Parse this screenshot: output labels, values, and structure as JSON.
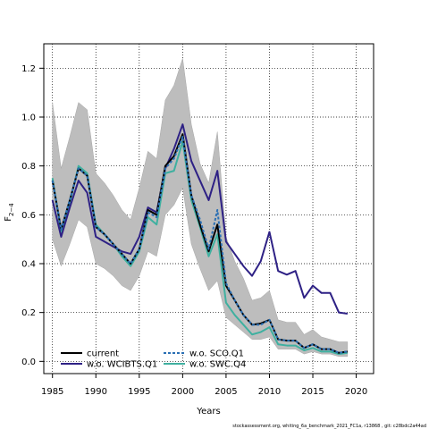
{
  "chart_data": {
    "type": "line",
    "xlabel": "Years",
    "ylabel_main": "F",
    "ylabel_sub": "2−4",
    "xlim": [
      1984,
      2022
    ],
    "ylim": [
      -0.05,
      1.3
    ],
    "xticks": [
      1985,
      1990,
      1995,
      2000,
      2005,
      2010,
      2015,
      2020
    ],
    "yticks": [
      0.0,
      0.2,
      0.4,
      0.6,
      0.8,
      1.0,
      1.2
    ],
    "grid": true,
    "legend_position": "bottom-left",
    "footnote": "stockassessment.org, whiting_6a_benchmark_2021_FC1a, r13868 , git: c28bdc2a44ad",
    "confidence_band": {
      "x": [
        1985,
        1986,
        1987,
        1988,
        1989,
        1990,
        1991,
        1992,
        1993,
        1994,
        1995,
        1996,
        1997,
        1998,
        1999,
        2000,
        2001,
        2002,
        2003,
        2004,
        2005,
        2006,
        2007,
        2008,
        2009,
        2010,
        2011,
        2012,
        2013,
        2014,
        2015,
        2016,
        2017,
        2018,
        2019
      ],
      "lower": [
        0.5,
        0.39,
        0.48,
        0.58,
        0.55,
        0.4,
        0.38,
        0.35,
        0.31,
        0.29,
        0.35,
        0.45,
        0.43,
        0.6,
        0.64,
        0.71,
        0.48,
        0.38,
        0.29,
        0.33,
        0.18,
        0.15,
        0.12,
        0.09,
        0.09,
        0.1,
        0.05,
        0.05,
        0.05,
        0.03,
        0.04,
        0.03,
        0.03,
        0.02,
        0.02
      ],
      "upper": [
        1.06,
        0.79,
        0.92,
        1.06,
        1.03,
        0.77,
        0.73,
        0.68,
        0.62,
        0.58,
        0.71,
        0.86,
        0.83,
        1.07,
        1.13,
        1.24,
        0.97,
        0.81,
        0.73,
        0.94,
        0.51,
        0.41,
        0.34,
        0.25,
        0.26,
        0.29,
        0.17,
        0.16,
        0.16,
        0.11,
        0.13,
        0.1,
        0.09,
        0.08,
        0.08
      ]
    },
    "series": [
      {
        "name": "current",
        "color": "#000000",
        "style": "solid",
        "width": 2,
        "x": [
          1985,
          1986,
          1987,
          1988,
          1989,
          1990,
          1991,
          1992,
          1993,
          1994,
          1995,
          1996,
          1997,
          1998,
          1999,
          2000,
          2001,
          2002,
          2003,
          2004,
          2005,
          2006,
          2007,
          2008,
          2009,
          2010,
          2011,
          2012,
          2013,
          2014,
          2015,
          2016,
          2017,
          2018,
          2019
        ],
        "values": [
          0.74,
          0.54,
          0.66,
          0.79,
          0.76,
          0.55,
          0.52,
          0.48,
          0.44,
          0.4,
          0.46,
          0.62,
          0.6,
          0.8,
          0.84,
          0.93,
          0.68,
          0.56,
          0.45,
          0.56,
          0.31,
          0.25,
          0.19,
          0.15,
          0.155,
          0.17,
          0.09,
          0.085,
          0.085,
          0.055,
          0.07,
          0.05,
          0.05,
          0.035,
          0.04
        ]
      },
      {
        "name": "w.o. WCIBTS.Q1",
        "color": "#2e2185",
        "style": "solid",
        "width": 2,
        "x": [
          1985,
          1986,
          1987,
          1988,
          1989,
          1990,
          1991,
          1992,
          1993,
          1994,
          1995,
          1996,
          1997,
          1998,
          1999,
          2000,
          2001,
          2002,
          2003,
          2004,
          2005,
          2006,
          2007,
          2008,
          2009,
          2010,
          2011,
          2012,
          2013,
          2014,
          2015,
          2016,
          2017,
          2018,
          2019
        ],
        "values": [
          0.66,
          0.51,
          0.63,
          0.74,
          0.69,
          0.51,
          0.49,
          0.47,
          0.45,
          0.44,
          0.51,
          0.63,
          0.61,
          0.79,
          0.87,
          0.97,
          0.82,
          0.74,
          0.66,
          0.78,
          0.49,
          0.44,
          0.39,
          0.35,
          0.41,
          0.53,
          0.37,
          0.355,
          0.37,
          0.26,
          0.31,
          0.28,
          0.28,
          0.2,
          0.195
        ]
      },
      {
        "name": "w.o. SCO.Q1",
        "color": "#2a6fb4",
        "style": "dashed",
        "width": 2,
        "x": [
          1985,
          1986,
          1987,
          1988,
          1989,
          1990,
          1991,
          1992,
          1993,
          1994,
          1995,
          1996,
          1997,
          1998,
          1999,
          2000,
          2001,
          2002,
          2003,
          2004,
          2005,
          2006,
          2007,
          2008,
          2009,
          2010,
          2011,
          2012,
          2013,
          2014,
          2015,
          2016,
          2017,
          2018,
          2019
        ],
        "values": [
          0.74,
          0.54,
          0.66,
          0.79,
          0.76,
          0.55,
          0.52,
          0.48,
          0.44,
          0.4,
          0.46,
          0.61,
          0.59,
          0.79,
          0.83,
          0.92,
          0.68,
          0.58,
          0.46,
          0.62,
          0.32,
          0.25,
          0.19,
          0.15,
          0.15,
          0.17,
          0.09,
          0.085,
          0.085,
          0.055,
          0.07,
          0.05,
          0.05,
          0.035,
          0.04
        ]
      },
      {
        "name": "w.o. SWC.Q4",
        "color": "#3fb0a0",
        "style": "solid",
        "width": 2,
        "x": [
          1985,
          1986,
          1987,
          1988,
          1989,
          1990,
          1991,
          1992,
          1993,
          1994,
          1995,
          1996,
          1997,
          1998,
          1999,
          2000,
          2001,
          2002,
          2003,
          2004,
          2005,
          2006,
          2007,
          2008,
          2009,
          2010,
          2011,
          2012,
          2013,
          2014,
          2015,
          2016,
          2017,
          2018,
          2019
        ],
        "values": [
          0.75,
          0.53,
          0.65,
          0.8,
          0.77,
          0.56,
          0.52,
          0.48,
          0.43,
          0.39,
          0.45,
          0.59,
          0.56,
          0.77,
          0.78,
          0.9,
          0.66,
          0.55,
          0.43,
          0.52,
          0.24,
          0.19,
          0.15,
          0.11,
          0.12,
          0.14,
          0.07,
          0.065,
          0.065,
          0.045,
          0.055,
          0.04,
          0.04,
          0.03,
          0.035
        ]
      }
    ],
    "legend_entries": [
      {
        "name": "current",
        "color": "#000000",
        "style": "solid"
      },
      {
        "name": "w.o. WCIBTS.Q1",
        "color": "#2e2185",
        "style": "solid"
      },
      {
        "name": "w.o. SCO.Q1",
        "color": "#2a6fb4",
        "style": "dashed"
      },
      {
        "name": "w.o. SWC.Q4",
        "color": "#3fb0a0",
        "style": "solid"
      }
    ]
  }
}
